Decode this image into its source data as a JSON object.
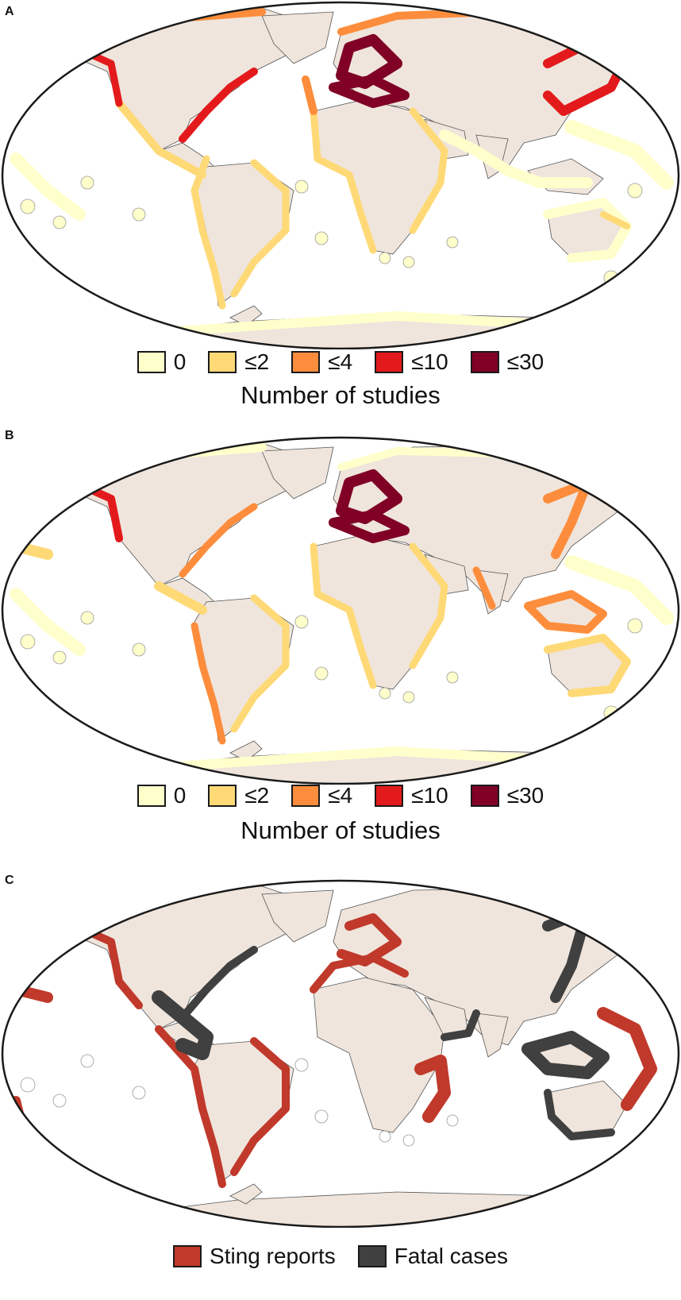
{
  "panels": [
    {
      "letter": "A",
      "legend_title": "Number of studies",
      "legend": [
        {
          "label": "0",
          "color": "#ffffcc"
        },
        {
          "label": "≤2",
          "color": "#fed976"
        },
        {
          "label": "≤4",
          "color": "#fd8d3c"
        },
        {
          "label": "≤10",
          "color": "#e31a1c"
        },
        {
          "label": "≤30",
          "color": "#800026"
        }
      ]
    },
    {
      "letter": "B",
      "legend_title": "Number of studies",
      "legend": [
        {
          "label": "0",
          "color": "#ffffcc"
        },
        {
          "label": "≤2",
          "color": "#fed976"
        },
        {
          "label": "≤4",
          "color": "#fd8d3c"
        },
        {
          "label": "≤10",
          "color": "#e31a1c"
        },
        {
          "label": "≤30",
          "color": "#800026"
        }
      ]
    },
    {
      "letter": "C",
      "legend_title": "",
      "legend": [
        {
          "label": "Sting reports",
          "color": "#c0392b"
        },
        {
          "label": "Fatal cases",
          "color": "#404040"
        }
      ]
    }
  ],
  "colors": {
    "land": "#efe5dc",
    "ocean": "#ffffff",
    "outline": "#1a1a1a"
  }
}
